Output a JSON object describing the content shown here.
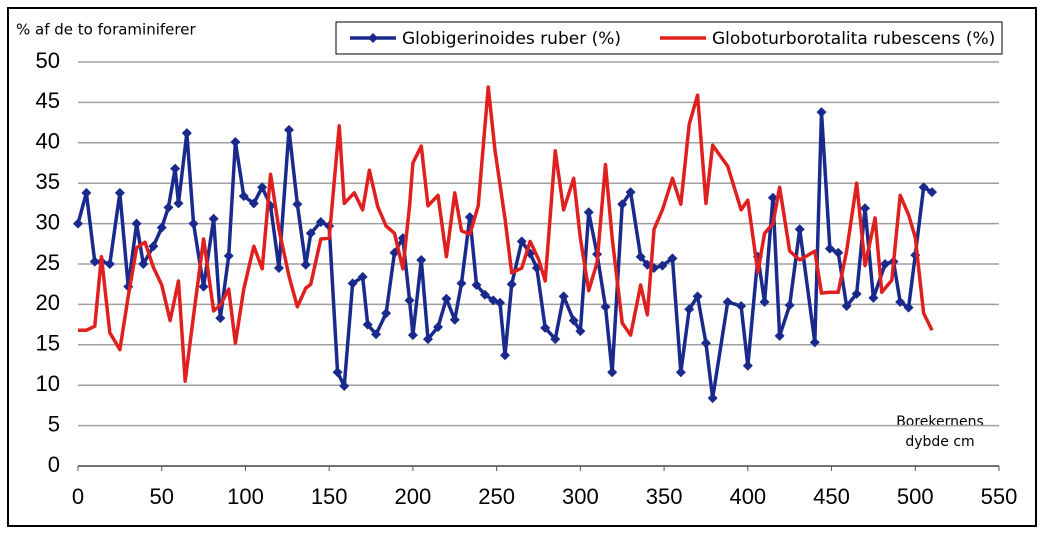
{
  "chart_data": {
    "type": "line",
    "y_label": "% af de to foraminiferer",
    "annotation": "Borekernens dybde cm",
    "xlim": [
      0,
      550
    ],
    "xticks": [
      0,
      50,
      100,
      150,
      200,
      250,
      300,
      350,
      400,
      450,
      500,
      550
    ],
    "ylim": [
      0,
      50
    ],
    "yticks": [
      0,
      5,
      10,
      15,
      20,
      25,
      30,
      35,
      40,
      45,
      50
    ],
    "grid": true,
    "legend": "top",
    "series": [
      {
        "name": "Globigerinoides ruber (%)",
        "color": "#1a2a8c",
        "marker": "diamond",
        "x": [
          0,
          5,
          10,
          14,
          19,
          25,
          30,
          35,
          39,
          45,
          50,
          54,
          58,
          60,
          65,
          69,
          75,
          81,
          85,
          90,
          94,
          99,
          105,
          110,
          115,
          120,
          126,
          131,
          136,
          139,
          145,
          150,
          155,
          159,
          164,
          170,
          173,
          178,
          184,
          189,
          194,
          198,
          200,
          205,
          209,
          215,
          220,
          225,
          229,
          234,
          238,
          243,
          248,
          252,
          255,
          259,
          265,
          270,
          274,
          279,
          285,
          290,
          296,
          300,
          305,
          310,
          315,
          319,
          325,
          330,
          336,
          340,
          344,
          349,
          355,
          360,
          365,
          370,
          375,
          379,
          388,
          396,
          400,
          406,
          410,
          415,
          419,
          425,
          431,
          440,
          444,
          449,
          454,
          459,
          465,
          470,
          475,
          482,
          487,
          491,
          496,
          500,
          505,
          510
        ],
        "values": [
          30,
          33.8,
          25.3,
          25.3,
          25,
          33.8,
          22.2,
          30,
          25,
          27.2,
          29.5,
          32,
          36.8,
          32.5,
          41.2,
          30,
          22.2,
          30.6,
          18.3,
          26,
          40.1,
          33.4,
          32.5,
          34.5,
          32.2,
          24.5,
          41.6,
          32.4,
          24.9,
          28.8,
          30.2,
          29.7,
          11.6,
          9.9,
          22.6,
          23.4,
          17.5,
          16.3,
          18.9,
          26.4,
          28.2,
          20.5,
          16.2,
          25.5,
          15.7,
          17.2,
          20.7,
          18.1,
          22.6,
          30.8,
          22.4,
          21.2,
          20.5,
          20.2,
          13.7,
          22.5,
          27.8,
          26.3,
          24.5,
          17.1,
          15.7,
          21,
          18,
          16.7,
          31.4,
          26.2,
          19.7,
          11.6,
          32.4,
          33.9,
          25.9,
          24.9,
          24.5,
          24.8,
          25.7,
          11.6,
          19.4,
          21,
          15.2,
          8.4,
          20.3,
          19.8,
          12.4,
          25.9,
          20.3,
          33.2,
          16.1,
          19.9,
          29.3,
          15.3,
          43.8,
          26.9,
          26.4,
          19.8,
          21.3,
          31.9,
          20.8,
          25,
          25.3,
          20.3,
          19.6,
          26.1,
          34.5,
          33.9
        ]
      },
      {
        "name": "Globoturborotalita rubescens (%)",
        "color": "#e01f1f",
        "marker": "none",
        "x": [
          0,
          5,
          10,
          14,
          19,
          25,
          30,
          35,
          40,
          45,
          50,
          55,
          60,
          64,
          69,
          75,
          81,
          85,
          90,
          94,
          99,
          105,
          110,
          115,
          120,
          126,
          131,
          136,
          139,
          145,
          150,
          156,
          159,
          165,
          170,
          174,
          179,
          184,
          189,
          194,
          198,
          200,
          205,
          209,
          215,
          220,
          225,
          229,
          234,
          239,
          245,
          249,
          255,
          259,
          265,
          270,
          275,
          279,
          285,
          290,
          296,
          300,
          305,
          310,
          315,
          319,
          325,
          330,
          336,
          340,
          344,
          349,
          355,
          360,
          365,
          370,
          375,
          379,
          388,
          396,
          400,
          406,
          410,
          415,
          419,
          425,
          431,
          440,
          444,
          449,
          454,
          459,
          465,
          470,
          476,
          480,
          486,
          491,
          496,
          500,
          505,
          510
        ],
        "values": [
          16.8,
          16.8,
          17.3,
          25.9,
          16.5,
          14.4,
          21,
          27,
          27.7,
          24.6,
          22.4,
          18,
          22.9,
          10.5,
          18.6,
          28.1,
          19.2,
          19.9,
          21.9,
          15.2,
          21.9,
          27.2,
          24.4,
          36.1,
          29.3,
          23.5,
          19.7,
          22,
          22.5,
          28.1,
          28.2,
          42.1,
          32.5,
          33.8,
          31.7,
          36.6,
          32.1,
          29.7,
          28.8,
          24.4,
          32.2,
          37.5,
          39.6,
          32.2,
          33.5,
          25.9,
          33.8,
          29.1,
          28.7,
          32.2,
          46.9,
          39.1,
          30.6,
          23.9,
          24.5,
          27.8,
          25.6,
          22.9,
          39,
          31.7,
          35.6,
          28.2,
          21.7,
          25.2,
          37.3,
          28.2,
          17.7,
          16.2,
          22.4,
          18.7,
          29.3,
          31.7,
          35.6,
          32.4,
          42.3,
          45.9,
          32.5,
          39.7,
          37.1,
          31.7,
          32.9,
          24,
          28.8,
          30,
          34.5,
          26.6,
          25.5,
          26.6,
          21.4,
          21.5,
          21.5,
          26.6,
          35,
          24.8,
          30.7,
          21.5,
          23,
          33.5,
          31.1,
          28.3,
          18.9,
          16.8
        ]
      }
    ]
  }
}
